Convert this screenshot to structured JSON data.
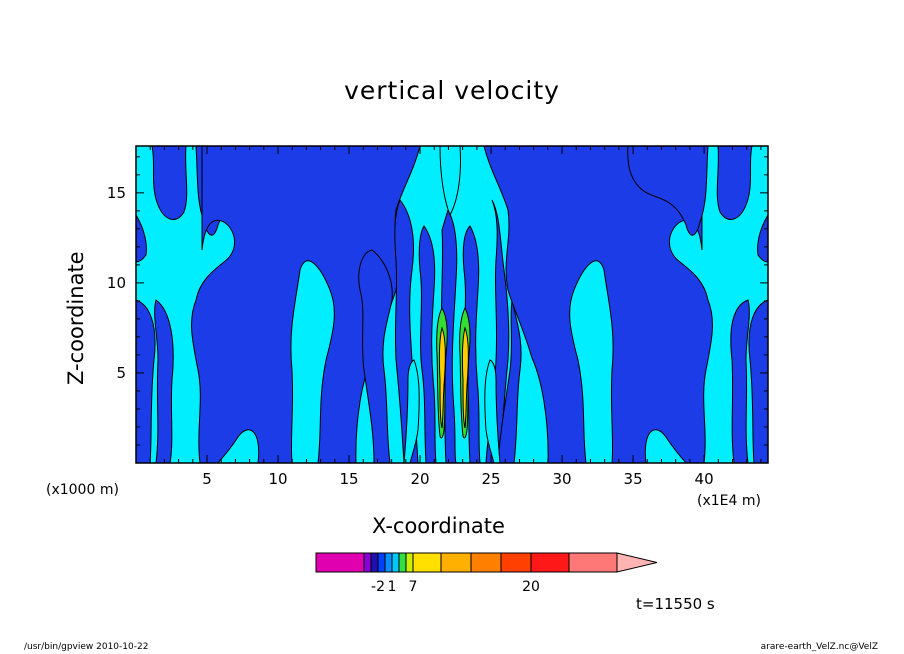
{
  "title": "vertical velocity",
  "footer": {
    "left": "/usr/bin/gpview   2010-10-22",
    "right": "arare-earth_VelZ.nc@VelZ"
  },
  "time_label": "t=11550  s",
  "colors": {
    "positive_weak": "#00eeff",
    "negative": "#1b3ce6",
    "positive_mid": "#33dd33",
    "positive_strong": "#ffcc00"
  },
  "chart_data": {
    "type": "heatmap",
    "title": "vertical velocity",
    "xlabel": "X-coordinate",
    "ylabel": "Z-coordinate",
    "x_unit_left": "(x1000 m)",
    "x_unit_right": "(x1E4 m)",
    "xlim": [
      0,
      44.5
    ],
    "ylim": [
      0,
      17.6
    ],
    "xticks": [
      5,
      10,
      15,
      20,
      25,
      30,
      35,
      40
    ],
    "yticks": [
      5,
      10,
      15
    ],
    "contour_fill": "Alternating positive (cyan) and negative (blue) vertical-velocity cells, symmetric about x≈22.5, with strong updrafts (yellow/green) near x≈21.5 and x≈23.5 below z≈9",
    "colorbar": {
      "levels": [
        "-2",
        "1",
        "7",
        "20"
      ],
      "colors": [
        "#e000b0",
        "#8a00d8",
        "#2010b0",
        "#0040ff",
        "#0090ff",
        "#00c8ff",
        "#30e040",
        "#c8f000",
        "#ffe000",
        "#ffb000",
        "#ff8000",
        "#ff4000",
        "#ff1818",
        "#ff7878",
        "#ffb4b4"
      ],
      "extend": "max"
    }
  }
}
